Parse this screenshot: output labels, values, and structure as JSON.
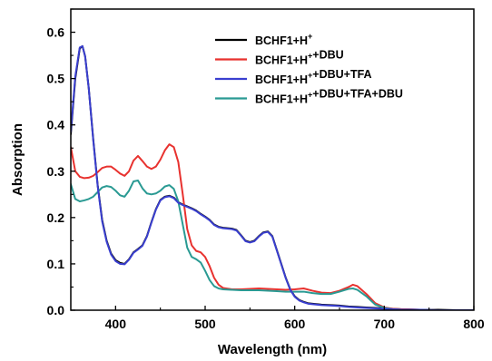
{
  "chart_data": {
    "type": "line",
    "title": "",
    "xlabel": "Wavelength (nm)",
    "ylabel": "Absorption",
    "xlim": [
      350,
      800
    ],
    "ylim": [
      0.0,
      0.65
    ],
    "xticks": [
      400,
      500,
      600,
      700,
      800
    ],
    "yticks": [
      0.0,
      0.1,
      0.2,
      0.3,
      0.4,
      0.5,
      0.6
    ],
    "xtick_labels": [
      "400",
      "500",
      "600",
      "700",
      "800"
    ],
    "ytick_labels": [
      "0.0",
      "0.1",
      "0.2",
      "0.3",
      "0.4",
      "0.5",
      "0.6"
    ],
    "grid": false,
    "legend_position": "top-right",
    "series": [
      {
        "name": "BCHF1+H⁺",
        "color": "#000000",
        "x": [
          350,
          355,
          360,
          363,
          366,
          370,
          375,
          380,
          385,
          390,
          395,
          400,
          405,
          410,
          415,
          420,
          425,
          430,
          435,
          440,
          445,
          450,
          455,
          460,
          465,
          470,
          475,
          480,
          485,
          490,
          495,
          500,
          505,
          510,
          515,
          520,
          525,
          530,
          535,
          540,
          545,
          550,
          555,
          560,
          565,
          570,
          575,
          580,
          585,
          590,
          595,
          600,
          605,
          610,
          615,
          620,
          630,
          640,
          650,
          660,
          670,
          680,
          690,
          700,
          710,
          720,
          740,
          760,
          780,
          800
        ],
        "y": [
          0.38,
          0.5,
          0.565,
          0.57,
          0.548,
          0.48,
          0.37,
          0.27,
          0.195,
          0.15,
          0.122,
          0.108,
          0.102,
          0.1,
          0.11,
          0.125,
          0.132,
          0.14,
          0.16,
          0.19,
          0.218,
          0.238,
          0.245,
          0.247,
          0.243,
          0.233,
          0.228,
          0.224,
          0.22,
          0.215,
          0.208,
          0.202,
          0.195,
          0.185,
          0.18,
          0.178,
          0.177,
          0.176,
          0.173,
          0.162,
          0.15,
          0.147,
          0.15,
          0.16,
          0.168,
          0.17,
          0.16,
          0.13,
          0.1,
          0.07,
          0.045,
          0.03,
          0.022,
          0.018,
          0.015,
          0.014,
          0.012,
          0.011,
          0.01,
          0.008,
          0.007,
          0.006,
          0.005,
          0.004,
          0.003,
          0.002,
          0.001,
          0.001,
          0.0,
          0.0
        ]
      },
      {
        "name": "BCHF1+H⁺+DBU",
        "color": "#e8322f",
        "x": [
          350,
          355,
          360,
          365,
          370,
          375,
          380,
          385,
          390,
          395,
          400,
          405,
          410,
          415,
          420,
          425,
          430,
          435,
          440,
          445,
          450,
          455,
          460,
          465,
          470,
          475,
          480,
          485,
          490,
          495,
          500,
          505,
          510,
          515,
          520,
          530,
          540,
          550,
          560,
          570,
          580,
          590,
          600,
          610,
          620,
          630,
          640,
          650,
          660,
          665,
          670,
          680,
          690,
          700,
          710,
          720,
          740,
          760,
          780,
          800
        ],
        "y": [
          0.352,
          0.3,
          0.288,
          0.285,
          0.286,
          0.29,
          0.298,
          0.307,
          0.31,
          0.31,
          0.303,
          0.295,
          0.29,
          0.3,
          0.323,
          0.333,
          0.322,
          0.31,
          0.305,
          0.31,
          0.325,
          0.345,
          0.358,
          0.352,
          0.32,
          0.25,
          0.175,
          0.14,
          0.128,
          0.125,
          0.115,
          0.095,
          0.07,
          0.055,
          0.048,
          0.045,
          0.045,
          0.046,
          0.047,
          0.046,
          0.045,
          0.044,
          0.045,
          0.047,
          0.042,
          0.038,
          0.037,
          0.042,
          0.05,
          0.055,
          0.052,
          0.035,
          0.015,
          0.006,
          0.003,
          0.002,
          0.001,
          0.0,
          0.0,
          0.0
        ]
      },
      {
        "name": "BCHF1+H⁺+DBU+TFA",
        "color": "#3a3fd0",
        "x": [
          350,
          355,
          360,
          363,
          366,
          370,
          375,
          380,
          385,
          390,
          395,
          400,
          405,
          410,
          415,
          420,
          425,
          430,
          435,
          440,
          445,
          450,
          455,
          460,
          465,
          470,
          475,
          480,
          485,
          490,
          495,
          500,
          505,
          510,
          515,
          520,
          525,
          530,
          535,
          540,
          545,
          550,
          555,
          560,
          565,
          570,
          575,
          580,
          585,
          590,
          595,
          600,
          605,
          610,
          615,
          620,
          630,
          640,
          650,
          660,
          670,
          680,
          690,
          700,
          710,
          720,
          740,
          760,
          780,
          800
        ],
        "y": [
          0.385,
          0.505,
          0.567,
          0.57,
          0.548,
          0.48,
          0.368,
          0.268,
          0.192,
          0.148,
          0.12,
          0.106,
          0.1,
          0.099,
          0.109,
          0.124,
          0.131,
          0.139,
          0.159,
          0.189,
          0.217,
          0.237,
          0.244,
          0.246,
          0.242,
          0.232,
          0.227,
          0.223,
          0.219,
          0.214,
          0.207,
          0.201,
          0.194,
          0.184,
          0.179,
          0.177,
          0.176,
          0.175,
          0.172,
          0.161,
          0.149,
          0.146,
          0.149,
          0.159,
          0.167,
          0.169,
          0.159,
          0.129,
          0.099,
          0.069,
          0.044,
          0.029,
          0.021,
          0.017,
          0.014,
          0.013,
          0.011,
          0.01,
          0.009,
          0.007,
          0.006,
          0.005,
          0.004,
          0.003,
          0.002,
          0.001,
          0.001,
          0.0,
          0.0,
          0.0
        ]
      },
      {
        "name": "BCHF1+H⁺+DBU+TFA+DBU",
        "color": "#2a9a93",
        "x": [
          350,
          355,
          360,
          365,
          370,
          375,
          380,
          385,
          390,
          395,
          400,
          405,
          410,
          415,
          420,
          425,
          430,
          435,
          440,
          445,
          450,
          455,
          460,
          465,
          470,
          475,
          480,
          485,
          490,
          495,
          500,
          505,
          510,
          515,
          520,
          530,
          540,
          550,
          560,
          570,
          580,
          590,
          600,
          610,
          620,
          630,
          640,
          650,
          660,
          665,
          670,
          680,
          690,
          700,
          710,
          720,
          740,
          760,
          780,
          800
        ],
        "y": [
          0.272,
          0.24,
          0.235,
          0.237,
          0.24,
          0.245,
          0.255,
          0.265,
          0.268,
          0.266,
          0.258,
          0.248,
          0.245,
          0.258,
          0.278,
          0.28,
          0.263,
          0.252,
          0.25,
          0.252,
          0.258,
          0.267,
          0.27,
          0.262,
          0.235,
          0.185,
          0.135,
          0.115,
          0.11,
          0.103,
          0.085,
          0.065,
          0.052,
          0.047,
          0.045,
          0.044,
          0.043,
          0.043,
          0.043,
          0.042,
          0.041,
          0.04,
          0.04,
          0.04,
          0.037,
          0.035,
          0.035,
          0.04,
          0.046,
          0.047,
          0.044,
          0.03,
          0.012,
          0.005,
          0.002,
          0.001,
          0.001,
          0.0,
          0.0,
          0.0
        ]
      }
    ]
  }
}
